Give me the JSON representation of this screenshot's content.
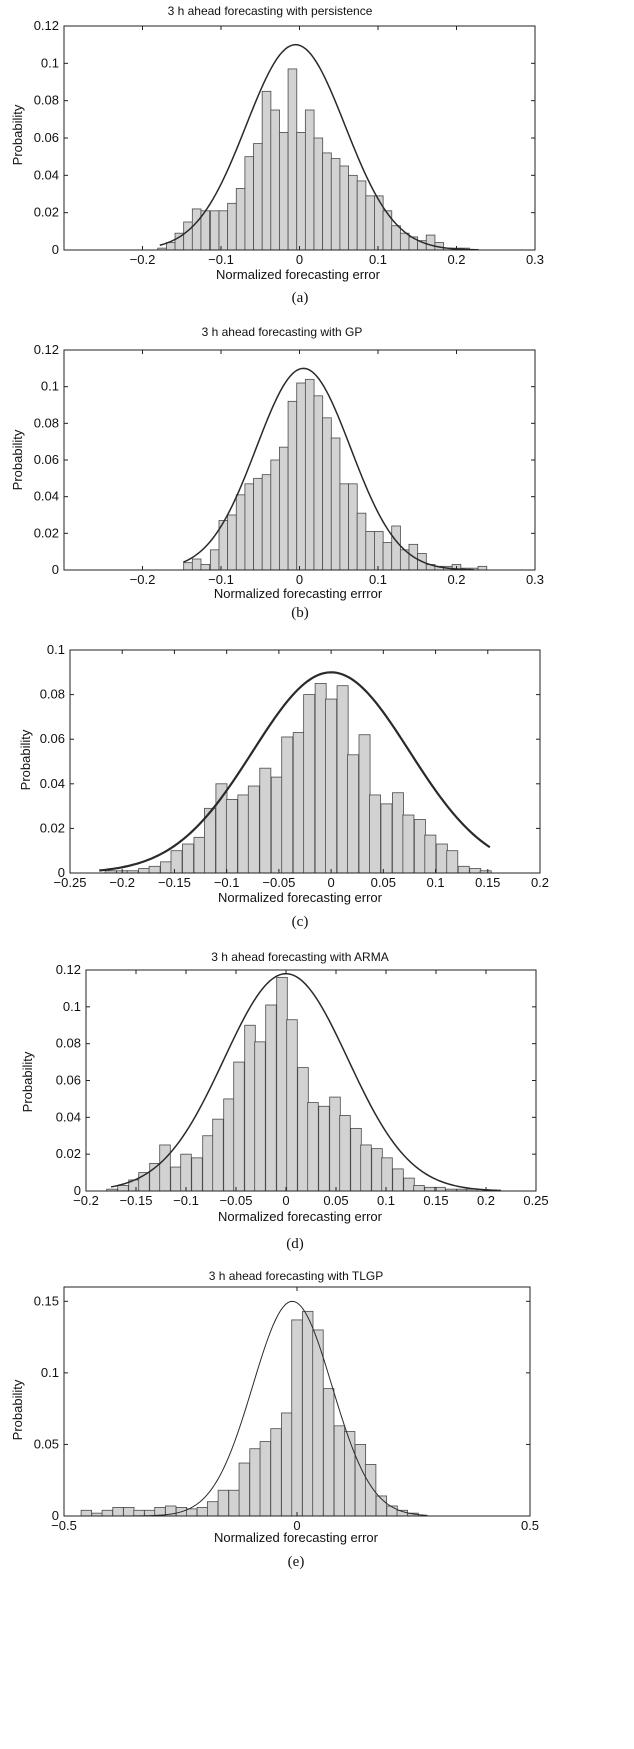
{
  "chart_data": [
    {
      "type": "bar",
      "panel": "a",
      "title": "3 h  ahead forecasting with persistence",
      "xlabel": "Normalized forecasting error",
      "ylabel": "Probability",
      "caption": "(a)",
      "xlim": [
        -0.3,
        0.3
      ],
      "ylim": [
        0,
        0.12
      ],
      "xticks": [
        -0.2,
        -0.1,
        0,
        0.1,
        0.2,
        0.3
      ],
      "xtick_labels": [
        "−0.2",
        "−0.1",
        "0",
        "0.1",
        "0.2",
        "0.3"
      ],
      "yticks": [
        0,
        0.02,
        0.04,
        0.06,
        0.08,
        0.1,
        0.12
      ],
      "ytick_labels": [
        "0",
        "0.02",
        "0.04",
        "0.06",
        "0.08",
        "0.1",
        "0.12"
      ],
      "bar_width": 0.0111,
      "x": [
        -0.175,
        -0.164,
        -0.153,
        -0.142,
        -0.131,
        -0.12,
        -0.108,
        -0.097,
        -0.086,
        -0.075,
        -0.064,
        -0.053,
        -0.042,
        -0.031,
        -0.02,
        -0.009,
        0.002,
        0.013,
        0.024,
        0.035,
        0.046,
        0.057,
        0.068,
        0.079,
        0.09,
        0.101,
        0.112,
        0.123,
        0.134,
        0.145,
        0.156,
        0.167,
        0.178,
        0.189,
        0.2,
        0.211
      ],
      "values": [
        0.001,
        0.004,
        0.009,
        0.015,
        0.022,
        0.021,
        0.021,
        0.021,
        0.025,
        0.033,
        0.05,
        0.057,
        0.085,
        0.075,
        0.063,
        0.097,
        0.063,
        0.075,
        0.06,
        0.052,
        0.049,
        0.045,
        0.04,
        0.037,
        0.029,
        0.029,
        0.021,
        0.013,
        0.009,
        0.007,
        0.005,
        0.008,
        0.004,
        0.001,
        0.001,
        0.001
      ],
      "fit_curve": {
        "mean": -0.005,
        "std": 0.063,
        "peak": 0.11,
        "x_range": [
          -0.178,
          0.228
        ]
      }
    },
    {
      "type": "bar",
      "panel": "b",
      "title": "3 h ahead forecasting with GP",
      "xlabel": "Normalized forecasting errror",
      "ylabel": "Probability",
      "caption": "(b)",
      "xlim": [
        -0.3,
        0.3
      ],
      "ylim": [
        0,
        0.12
      ],
      "xticks": [
        -0.2,
        -0.1,
        0,
        0.1,
        0.2,
        0.3
      ],
      "xtick_labels": [
        "−0.2",
        "−0.1",
        "0",
        "0.1",
        "0.2",
        "0.3"
      ],
      "yticks": [
        0,
        0.02,
        0.04,
        0.06,
        0.08,
        0.1,
        0.12
      ],
      "ytick_labels": [
        "0",
        "0.02",
        "0.04",
        "0.06",
        "0.08",
        "0.1",
        "0.12"
      ],
      "bar_width": 0.0111,
      "x": [
        -0.142,
        -0.131,
        -0.12,
        -0.108,
        -0.097,
        -0.086,
        -0.075,
        -0.064,
        -0.053,
        -0.042,
        -0.031,
        -0.02,
        -0.009,
        0.002,
        0.013,
        0.024,
        0.035,
        0.046,
        0.057,
        0.068,
        0.079,
        0.09,
        0.101,
        0.112,
        0.123,
        0.134,
        0.145,
        0.156,
        0.167,
        0.178,
        0.189,
        0.2,
        0.211,
        0.222,
        0.233
      ],
      "values": [
        0.004,
        0.006,
        0.003,
        0.011,
        0.027,
        0.03,
        0.041,
        0.047,
        0.05,
        0.052,
        0.06,
        0.067,
        0.092,
        0.102,
        0.104,
        0.095,
        0.083,
        0.072,
        0.047,
        0.047,
        0.031,
        0.021,
        0.021,
        0.015,
        0.024,
        0.011,
        0.014,
        0.009,
        0.003,
        0.002,
        0.002,
        0.003,
        0.001,
        0.001,
        0.002
      ],
      "fit_curve": {
        "mean": 0.005,
        "std": 0.06,
        "peak": 0.11,
        "x_range": [
          -0.148,
          0.222
        ]
      }
    },
    {
      "type": "bar",
      "panel": "c",
      "title": "",
      "xlabel": "Normalized forecasting error",
      "ylabel": "Probability",
      "caption": "(c)",
      "xlim": [
        -0.25,
        0.2
      ],
      "ylim": [
        0,
        0.1
      ],
      "xticks": [
        -0.25,
        -0.2,
        -0.15,
        -0.1,
        -0.05,
        0,
        0.05,
        0.1,
        0.15,
        0.2
      ],
      "xtick_labels": [
        "−0.25",
        "−0.2",
        "−0.15",
        "−0.1",
        "−0.05",
        "0",
        "0.05",
        "0.1",
        "0.15",
        "0.2"
      ],
      "yticks": [
        0,
        0.02,
        0.04,
        0.06,
        0.08,
        0.1
      ],
      "ytick_labels": [
        "0",
        "0.02",
        "0.04",
        "0.06",
        "0.08",
        "0.1"
      ],
      "bar_width": 0.0106,
      "x": [
        -0.222,
        -0.211,
        -0.2,
        -0.19,
        -0.179,
        -0.169,
        -0.158,
        -0.148,
        -0.137,
        -0.126,
        -0.116,
        -0.105,
        -0.095,
        -0.084,
        -0.074,
        -0.063,
        -0.052,
        -0.042,
        -0.031,
        -0.021,
        -0.01,
        0.0,
        0.011,
        0.021,
        0.032,
        0.042,
        0.053,
        0.064,
        0.074,
        0.085,
        0.095,
        0.106,
        0.116,
        0.127,
        0.138,
        0.148
      ],
      "values": [
        0.0,
        0.001,
        0.001,
        0.001,
        0.002,
        0.003,
        0.005,
        0.01,
        0.013,
        0.016,
        0.029,
        0.04,
        0.033,
        0.035,
        0.039,
        0.047,
        0.043,
        0.061,
        0.063,
        0.08,
        0.085,
        0.078,
        0.084,
        0.053,
        0.062,
        0.035,
        0.031,
        0.036,
        0.026,
        0.024,
        0.017,
        0.013,
        0.01,
        0.003,
        0.002,
        0.001
      ],
      "fit_curve": {
        "mean": 0.0,
        "std": 0.075,
        "peak": 0.09,
        "x_range": [
          -0.222,
          0.152
        ]
      }
    },
    {
      "type": "bar",
      "panel": "d",
      "title": "3 h ahead forecasting with ARMA",
      "xlabel": "Normalized forecasting error",
      "ylabel": "Probability",
      "caption": "(d)",
      "xlim": [
        -0.2,
        0.25
      ],
      "ylim": [
        0,
        0.12
      ],
      "xticks": [
        -0.2,
        -0.15,
        -0.1,
        -0.05,
        0,
        0.05,
        0.1,
        0.15,
        0.2,
        0.25
      ],
      "xtick_labels": [
        "−0.2",
        "−0.15",
        "−0.1",
        "−0.05",
        "0",
        "0.05",
        "0.1",
        "0.15",
        "0.2",
        "0.25"
      ],
      "yticks": [
        0,
        0.02,
        0.04,
        0.06,
        0.08,
        0.1,
        0.12
      ],
      "ytick_labels": [
        "0",
        "0.02",
        "0.04",
        "0.06",
        "0.08",
        "0.1",
        "0.12"
      ],
      "bar_width": 0.0106,
      "x": [
        -0.174,
        -0.163,
        -0.152,
        -0.142,
        -0.131,
        -0.121,
        -0.11,
        -0.1,
        -0.089,
        -0.078,
        -0.068,
        -0.057,
        -0.047,
        -0.036,
        -0.026,
        -0.015,
        -0.004,
        0.006,
        0.017,
        0.027,
        0.038,
        0.049,
        0.059,
        0.07,
        0.08,
        0.091,
        0.101,
        0.112,
        0.123,
        0.133,
        0.144,
        0.154,
        0.165,
        0.176,
        0.186,
        0.197
      ],
      "values": [
        0.001,
        0.003,
        0.006,
        0.01,
        0.015,
        0.025,
        0.013,
        0.02,
        0.018,
        0.03,
        0.039,
        0.05,
        0.07,
        0.09,
        0.081,
        0.101,
        0.116,
        0.093,
        0.067,
        0.048,
        0.046,
        0.051,
        0.041,
        0.034,
        0.025,
        0.023,
        0.018,
        0.012,
        0.007,
        0.003,
        0.002,
        0.002,
        0.001,
        0.001,
        0.001,
        0.0
      ],
      "fit_curve": {
        "mean": 0.0,
        "std": 0.062,
        "peak": 0.118,
        "x_range": [
          -0.175,
          0.215
        ]
      }
    },
    {
      "type": "bar",
      "panel": "e",
      "title": "3 h ahead forecasting with TLGP",
      "xlabel": "Normalized forecasting error",
      "ylabel": "Probability",
      "caption": "(e)",
      "xlim": [
        -0.5,
        0.5
      ],
      "ylim": [
        0,
        0.16
      ],
      "xticks": [
        -0.5,
        0,
        0.5
      ],
      "xtick_labels": [
        "−0.5",
        "0",
        "0.5"
      ],
      "yticks": [
        0,
        0.05,
        0.1,
        0.15
      ],
      "ytick_labels": [
        "0",
        "0.05",
        "0.1",
        "0.15"
      ],
      "bar_width": 0.0226,
      "x": [
        -0.452,
        -0.429,
        -0.407,
        -0.384,
        -0.361,
        -0.339,
        -0.316,
        -0.294,
        -0.271,
        -0.248,
        -0.226,
        -0.203,
        -0.181,
        -0.158,
        -0.135,
        -0.113,
        -0.09,
        -0.068,
        -0.045,
        -0.022,
        0.0,
        0.023,
        0.045,
        0.068,
        0.091,
        0.113,
        0.136,
        0.158,
        0.181,
        0.204,
        0.226,
        0.249
      ],
      "values": [
        0.004,
        0.002,
        0.004,
        0.006,
        0.006,
        0.004,
        0.004,
        0.006,
        0.007,
        0.006,
        0.005,
        0.006,
        0.01,
        0.018,
        0.018,
        0.037,
        0.047,
        0.052,
        0.061,
        0.072,
        0.137,
        0.143,
        0.13,
        0.089,
        0.063,
        0.059,
        0.05,
        0.036,
        0.014,
        0.007,
        0.004,
        0.002
      ],
      "fit_curve": {
        "mean": -0.01,
        "std": 0.085,
        "peak": 0.15,
        "x_range": [
          -0.35,
          0.28
        ]
      }
    }
  ]
}
